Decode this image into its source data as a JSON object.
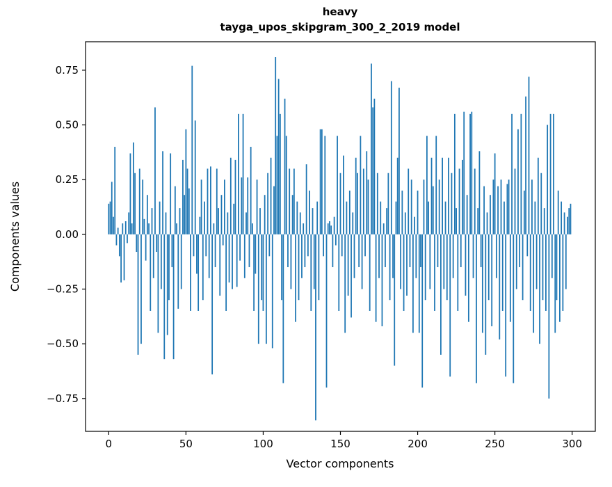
{
  "chart_data": {
    "type": "bar",
    "title_line1": "heavy",
    "title_line2": "tayga_upos_skipgram_300_2_2019 model",
    "xlabel": "Vector components",
    "ylabel": "Components values",
    "bar_color": "#1f77b4",
    "xlim": [
      -15,
      315
    ],
    "ylim": [
      -0.9,
      0.88
    ],
    "x_ticks": [
      0,
      50,
      100,
      150,
      200,
      250,
      300
    ],
    "y_ticks": [
      -0.75,
      -0.5,
      -0.25,
      0.0,
      0.25,
      0.5,
      0.75
    ],
    "grid": false,
    "legend": "none",
    "values": [
      0.14,
      0.15,
      0.24,
      0.08,
      0.4,
      -0.05,
      0.03,
      -0.1,
      -0.22,
      0.05,
      -0.21,
      0.06,
      -0.04,
      0.1,
      0.37,
      0.05,
      0.42,
      0.28,
      -0.08,
      -0.55,
      0.3,
      -0.5,
      0.25,
      0.07,
      -0.12,
      0.18,
      0.05,
      -0.35,
      0.12,
      -0.2,
      0.58,
      -0.08,
      -0.45,
      0.15,
      -0.25,
      0.38,
      -0.57,
      0.1,
      -0.46,
      -0.3,
      0.37,
      -0.15,
      -0.57,
      0.22,
      0.05,
      -0.34,
      0.12,
      -0.25,
      0.34,
      0.18,
      0.48,
      0.3,
      0.21,
      -0.35,
      0.77,
      -0.1,
      0.52,
      -0.18,
      -0.35,
      0.08,
      0.25,
      -0.3,
      0.15,
      -0.1,
      0.3,
      -0.2,
      0.31,
      -0.64,
      0.05,
      -0.15,
      0.3,
      0.12,
      -0.28,
      0.18,
      -0.05,
      0.25,
      -0.35,
      0.1,
      -0.22,
      0.35,
      -0.25,
      0.14,
      0.34,
      -0.24,
      0.55,
      -0.12,
      0.26,
      0.55,
      -0.2,
      0.1,
      0.26,
      -0.15,
      0.4,
      0.05,
      -0.35,
      -0.18,
      0.25,
      -0.5,
      0.12,
      -0.3,
      -0.35,
      0.18,
      -0.5,
      0.28,
      -0.1,
      0.35,
      -0.52,
      0.22,
      0.81,
      0.45,
      0.71,
      0.55,
      -0.3,
      -0.68,
      0.62,
      0.45,
      -0.15,
      0.3,
      -0.25,
      0.18,
      0.3,
      -0.4,
      0.15,
      -0.3,
      0.1,
      -0.2,
      0.05,
      -0.15,
      0.32,
      -0.1,
      0.2,
      -0.35,
      0.12,
      -0.25,
      -0.85,
      0.15,
      -0.3,
      0.48,
      0.48,
      -0.1,
      0.45,
      -0.7,
      0.05,
      0.06,
      0.04,
      -0.15,
      0.08,
      -0.05,
      0.45,
      -0.35,
      0.28,
      -0.1,
      0.36,
      -0.45,
      0.15,
      -0.28,
      0.2,
      -0.38,
      0.1,
      -0.2,
      0.35,
      0.28,
      -0.15,
      0.45,
      -0.25,
      0.3,
      -0.1,
      0.38,
      0.25,
      -0.35,
      0.78,
      0.58,
      0.62,
      -0.4,
      0.28,
      -0.2,
      0.15,
      -0.42,
      0.05,
      -0.15,
      0.12,
      0.28,
      -0.3,
      0.7,
      -0.2,
      -0.6,
      0.15,
      0.35,
      0.67,
      -0.25,
      0.2,
      -0.35,
      0.1,
      -0.28,
      0.3,
      -0.15,
      0.25,
      -0.45,
      0.08,
      -0.2,
      0.2,
      -0.45,
      -0.15,
      -0.7,
      0.25,
      -0.3,
      0.45,
      0.15,
      -0.25,
      0.35,
      0.22,
      -0.35,
      0.45,
      -0.15,
      0.25,
      -0.55,
      0.35,
      -0.25,
      0.15,
      -0.3,
      0.35,
      -0.65,
      0.28,
      -0.2,
      0.55,
      0.12,
      -0.35,
      0.3,
      -0.15,
      0.34,
      0.56,
      -0.28,
      0.18,
      -0.4,
      0.55,
      0.56,
      -0.2,
      0.3,
      -0.68,
      0.12,
      0.38,
      -0.15,
      -0.45,
      0.22,
      -0.55,
      0.1,
      -0.3,
      0.18,
      -0.42,
      0.25,
      0.37,
      -0.2,
      0.22,
      -0.48,
      0.25,
      -0.35,
      0.15,
      -0.65,
      0.23,
      0.25,
      -0.4,
      0.55,
      -0.68,
      0.3,
      -0.25,
      0.48,
      -0.15,
      0.55,
      -0.3,
      0.2,
      0.63,
      -0.1,
      0.72,
      -0.35,
      0.25,
      -0.45,
      0.15,
      -0.25,
      0.35,
      -0.5,
      0.28,
      -0.3,
      0.12,
      -0.35,
      0.5,
      -0.75,
      0.55,
      -0.2,
      0.55,
      -0.45,
      -0.3,
      0.2,
      -0.4,
      0.15,
      -0.35,
      0.1,
      -0.25,
      0.08,
      0.12,
      0.14
    ]
  }
}
